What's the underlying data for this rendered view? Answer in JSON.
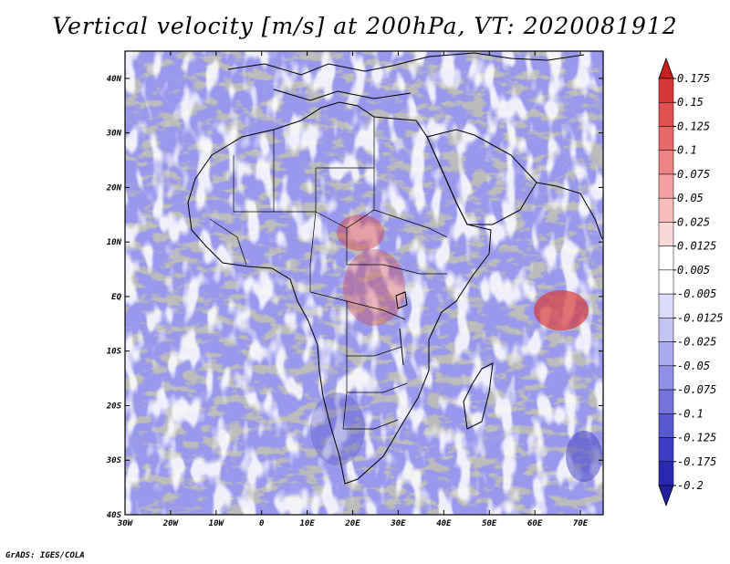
{
  "title": "Vertical velocity [m/s] at 200hPa, VT: 2020081912",
  "credit": "GrADS: IGES/COLA",
  "map": {
    "lon_range": [
      -30,
      75
    ],
    "lat_range": [
      -40,
      45
    ],
    "x_ticks": [
      "30W",
      "20W",
      "10W",
      "0",
      "10E",
      "20E",
      "30E",
      "40E",
      "50E",
      "60E",
      "70E"
    ],
    "y_ticks": [
      "40N",
      "30N",
      "20N",
      "10N",
      "EQ",
      "10S",
      "20S",
      "30S",
      "40S"
    ]
  },
  "colorbar": {
    "labels": [
      "0.175",
      "0.15",
      "0.125",
      "0.1",
      "0.075",
      "0.05",
      "0.025",
      "0.0125",
      "0.005",
      "-0.005",
      "-0.0125",
      "-0.025",
      "-0.05",
      "-0.075",
      "-0.1",
      "-0.125",
      "-0.175",
      "-0.2"
    ],
    "colors": [
      "#c81e1e",
      "#d63838",
      "#e05050",
      "#e86868",
      "#ef8484",
      "#f4a0a0",
      "#f8bcbc",
      "#fbd8d8",
      "#ffffff",
      "#ffffff",
      "#dcdcfa",
      "#c4c4f4",
      "#aaaaee",
      "#9090e6",
      "#7474dc",
      "#5858d0",
      "#3c3cc4",
      "#2828b0",
      "#2020a0"
    ]
  },
  "colors": {
    "warm": "#e45050",
    "cool": "#6060dc",
    "coast": "#000000"
  }
}
